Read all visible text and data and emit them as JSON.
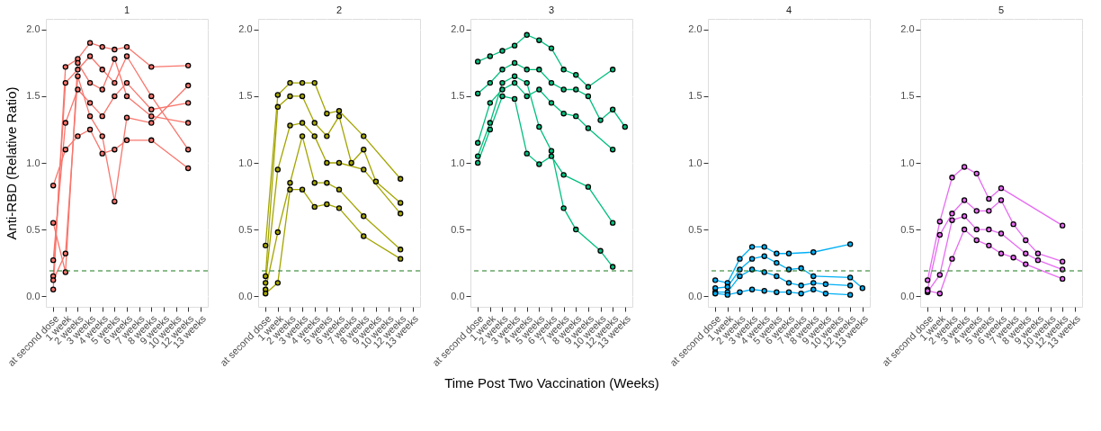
{
  "chart_data": [
    {
      "type": "line",
      "title": "1",
      "ylabel": "Anti-RBD (Relative Ratio)",
      "categories": [
        "at second dose",
        "1 week",
        "2 weeks",
        "3 weeks",
        "4 weeks",
        "5 weeks",
        "6 weeks",
        "7 weeks",
        "8 weeks",
        "9 weeks",
        "10 weeks",
        "12 weeks",
        "13 weeks"
      ],
      "ylim": [
        -0.08,
        2.08
      ],
      "yticks": [
        {
          "value": 0,
          "label": "0.0"
        },
        {
          "value": 0.5,
          "label": "0.5"
        },
        {
          "value": 1,
          "label": "1.0"
        },
        {
          "value": 1.5,
          "label": "1.5"
        },
        {
          "value": 2,
          "label": "2.0"
        }
      ],
      "grid": true,
      "marker": "circle",
      "line_style": "solid",
      "ref_lines": [
        {
          "axis": "y",
          "value": 0.19,
          "color": "#1a7a1a",
          "line_style": "dashed"
        }
      ],
      "series": [
        {
          "color": "#f8766d",
          "values": [
            0.05,
            1.72,
            1.78,
            1.9,
            1.87,
            1.85,
            1.87,
            null,
            1.72,
            null,
            null,
            1.73,
            null
          ]
        },
        {
          "color": "#f8766d",
          "values": [
            0.15,
            1.6,
            1.7,
            1.8,
            1.7,
            1.6,
            1.8,
            null,
            1.5,
            null,
            null,
            1.1,
            null
          ]
        },
        {
          "color": "#f8766d",
          "values": [
            0.27,
            1.3,
            1.55,
            1.45,
            1.35,
            1.5,
            1.6,
            null,
            1.4,
            null,
            null,
            1.45,
            null
          ]
        },
        {
          "color": "#f8766d",
          "values": [
            0.83,
            1.1,
            1.2,
            1.25,
            1.07,
            1.1,
            1.17,
            null,
            1.17,
            null,
            null,
            0.96,
            null
          ]
        },
        {
          "color": "#f8766d",
          "values": [
            0.12,
            0.32,
            1.65,
            1.35,
            1.2,
            0.71,
            1.34,
            null,
            1.3,
            null,
            null,
            1.58,
            null
          ]
        },
        {
          "color": "#f8766d",
          "values": [
            0.55,
            0.18,
            1.75,
            1.6,
            1.55,
            1.78,
            1.5,
            null,
            1.35,
            null,
            null,
            1.3,
            null
          ]
        }
      ]
    },
    {
      "type": "line",
      "title": "2",
      "categories": [
        "at second dose",
        "1 week",
        "2 weeks",
        "3 weeks",
        "4 weeks",
        "5 weeks",
        "6 weeks",
        "7 weeks",
        "8 weeks",
        "9 weeks",
        "10 weeks",
        "12 weeks",
        "13 weeks"
      ],
      "ylim": [
        -0.08,
        2.08
      ],
      "yticks": [
        {
          "value": 0,
          "label": "0.0"
        },
        {
          "value": 0.5,
          "label": "0.5"
        },
        {
          "value": 1,
          "label": "1.0"
        },
        {
          "value": 1.5,
          "label": "1.5"
        },
        {
          "value": 2,
          "label": "2.0"
        }
      ],
      "grid": true,
      "marker": "circle",
      "line_style": "solid",
      "ref_lines": [
        {
          "axis": "y",
          "value": 0.19,
          "color": "#1a7a1a",
          "line_style": "dashed"
        }
      ],
      "series": [
        {
          "color": "#a3a500",
          "values": [
            0.38,
            1.51,
            1.6,
            1.6,
            1.6,
            1.37,
            1.39,
            null,
            1.2,
            null,
            null,
            0.88,
            null
          ]
        },
        {
          "color": "#a3a500",
          "values": [
            0.15,
            1.42,
            1.5,
            1.5,
            1.3,
            1.2,
            1.35,
            1.0,
            1.1,
            0.86,
            null,
            0.7,
            null
          ]
        },
        {
          "color": "#a3a500",
          "values": [
            0.1,
            0.95,
            1.28,
            1.3,
            1.2,
            1.0,
            1.0,
            null,
            0.95,
            null,
            null,
            0.62,
            null
          ]
        },
        {
          "color": "#a3a500",
          "values": [
            0.05,
            0.48,
            0.85,
            1.2,
            0.85,
            0.85,
            0.8,
            null,
            0.6,
            null,
            null,
            0.35,
            null
          ]
        },
        {
          "color": "#a3a500",
          "values": [
            0.02,
            0.1,
            0.8,
            0.8,
            0.67,
            0.69,
            0.66,
            null,
            0.45,
            null,
            null,
            0.28,
            null
          ]
        }
      ]
    },
    {
      "type": "line",
      "title": "3",
      "xlabel": "Time Post Two Vaccination (Weeks)",
      "categories": [
        "at second dose",
        "1 week",
        "2 weeks",
        "3 weeks",
        "4 weeks",
        "5 weeks",
        "6 weeks",
        "7 weeks",
        "8 weeks",
        "9 weeks",
        "10 weeks",
        "12 weeks",
        "13 weeks"
      ],
      "ylim": [
        -0.08,
        2.08
      ],
      "yticks": [
        {
          "value": 0,
          "label": "0.0"
        },
        {
          "value": 0.5,
          "label": "0.5"
        },
        {
          "value": 1,
          "label": "1.0"
        },
        {
          "value": 1.5,
          "label": "1.5"
        },
        {
          "value": 2,
          "label": "2.0"
        }
      ],
      "grid": true,
      "marker": "circle",
      "line_style": "solid",
      "ref_lines": [
        {
          "axis": "y",
          "value": 0.19,
          "color": "#1a7a1a",
          "line_style": "dashed"
        }
      ],
      "series": [
        {
          "color": "#00bf7d",
          "values": [
            1.76,
            1.8,
            1.84,
            1.88,
            1.96,
            1.92,
            1.86,
            1.7,
            1.66,
            1.57,
            null,
            1.7,
            null
          ]
        },
        {
          "color": "#00bf7d",
          "values": [
            1.52,
            1.6,
            1.7,
            1.75,
            1.7,
            1.7,
            1.6,
            1.55,
            1.55,
            1.5,
            1.32,
            1.4,
            1.27
          ]
        },
        {
          "color": "#00bf7d",
          "values": [
            1.15,
            1.45,
            1.55,
            1.6,
            1.5,
            1.55,
            1.45,
            1.37,
            1.35,
            1.26,
            null,
            1.1,
            null
          ]
        },
        {
          "color": "#00bf7d",
          "values": [
            1.0,
            1.25,
            1.5,
            1.48,
            1.07,
            0.99,
            1.05,
            0.91,
            null,
            0.82,
            null,
            0.55,
            null
          ]
        },
        {
          "color": "#00bf7d",
          "values": [
            1.05,
            1.3,
            1.6,
            1.65,
            1.6,
            1.27,
            1.09,
            0.66,
            0.5,
            null,
            0.34,
            0.22,
            null
          ]
        }
      ]
    },
    {
      "type": "line",
      "title": "4",
      "categories": [
        "at second dose",
        "1 week",
        "2 weeks",
        "3 weeks",
        "4 weeks",
        "5 weeks",
        "6 weeks",
        "7 weeks",
        "8 weeks",
        "9 weeks",
        "10 weeks",
        "12 weeks",
        "13 weeks"
      ],
      "ylim": [
        -0.08,
        2.08
      ],
      "yticks": [
        {
          "value": 0,
          "label": "0.0"
        },
        {
          "value": 0.5,
          "label": "0.5"
        },
        {
          "value": 1,
          "label": "1.0"
        },
        {
          "value": 1.5,
          "label": "1.5"
        },
        {
          "value": 2,
          "label": "2.0"
        }
      ],
      "grid": true,
      "marker": "circle",
      "line_style": "solid",
      "ref_lines": [
        {
          "axis": "y",
          "value": 0.19,
          "color": "#1a7a1a",
          "line_style": "dashed"
        }
      ],
      "series": [
        {
          "color": "#00b0f6",
          "values": [
            0.12,
            0.1,
            0.28,
            0.37,
            0.37,
            0.32,
            0.32,
            null,
            0.33,
            null,
            null,
            0.39,
            null
          ]
        },
        {
          "color": "#00b0f6",
          "values": [
            0.06,
            0.07,
            0.2,
            0.28,
            0.3,
            0.25,
            0.2,
            0.21,
            0.15,
            null,
            null,
            0.14,
            0.06
          ]
        },
        {
          "color": "#00b0f6",
          "values": [
            0.03,
            0.03,
            0.15,
            0.2,
            0.18,
            0.15,
            0.1,
            0.08,
            0.1,
            0.09,
            null,
            0.08,
            null
          ]
        },
        {
          "color": "#00b0f6",
          "values": [
            0.02,
            0.01,
            0.03,
            0.05,
            0.04,
            0.03,
            0.03,
            0.02,
            0.05,
            0.02,
            null,
            0.01,
            null
          ]
        }
      ]
    },
    {
      "type": "line",
      "title": "5",
      "categories": [
        "at second dose",
        "1 week",
        "2 weeks",
        "3 weeks",
        "4 weeks",
        "5 weeks",
        "6 weeks",
        "7 weeks",
        "8 weeks",
        "9 weeks",
        "10 weeks",
        "12 weeks",
        "13 weeks"
      ],
      "ylim": [
        -0.08,
        2.08
      ],
      "yticks": [
        {
          "value": 0,
          "label": "0.0"
        },
        {
          "value": 0.5,
          "label": "0.5"
        },
        {
          "value": 1,
          "label": "1.0"
        },
        {
          "value": 1.5,
          "label": "1.5"
        },
        {
          "value": 2,
          "label": "2.0"
        }
      ],
      "grid": true,
      "marker": "circle",
      "line_style": "solid",
      "ref_lines": [
        {
          "axis": "y",
          "value": 0.19,
          "color": "#1a7a1a",
          "line_style": "dashed"
        }
      ],
      "series": [
        {
          "color": "#e76bf3",
          "values": [
            0.12,
            0.56,
            0.89,
            0.97,
            0.92,
            0.73,
            0.81,
            null,
            null,
            null,
            null,
            0.53,
            null
          ]
        },
        {
          "color": "#e76bf3",
          "values": [
            0.05,
            0.46,
            0.62,
            0.72,
            0.64,
            0.64,
            0.72,
            0.54,
            0.42,
            0.32,
            null,
            0.26,
            null
          ]
        },
        {
          "color": "#e76bf3",
          "values": [
            0.03,
            0.16,
            0.57,
            0.6,
            0.5,
            0.5,
            0.47,
            null,
            0.32,
            0.27,
            null,
            0.2,
            null
          ]
        },
        {
          "color": "#e76bf3",
          "values": [
            0.04,
            0.02,
            0.28,
            0.5,
            0.42,
            0.38,
            0.32,
            0.29,
            0.24,
            null,
            null,
            0.13,
            null
          ]
        }
      ]
    }
  ]
}
